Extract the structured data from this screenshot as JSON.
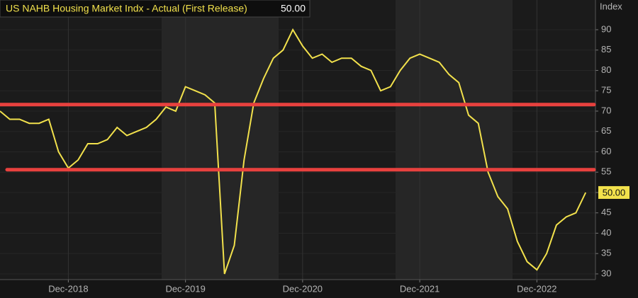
{
  "chart_data": {
    "type": "line",
    "title": "US NAHB Housing Market Indx - Actual (First Release)",
    "last_value_label": "50.00",
    "y_axis_label": "Index",
    "categories": [
      null,
      null,
      null,
      null,
      null,
      null,
      null,
      "Dec-2018",
      null,
      null,
      null,
      null,
      null,
      null,
      null,
      null,
      null,
      null,
      null,
      "Dec-2019",
      null,
      null,
      null,
      null,
      null,
      null,
      null,
      null,
      null,
      null,
      null,
      "Dec-2020",
      null,
      null,
      null,
      null,
      null,
      null,
      null,
      null,
      null,
      null,
      null,
      "Dec-2021",
      null,
      null,
      null,
      null,
      null,
      null,
      null,
      null,
      null,
      null,
      null,
      "Dec-2022",
      null,
      null,
      null,
      null,
      null
    ],
    "series": [
      {
        "color": "#f2e14c",
        "values": [
          70,
          68,
          68,
          67,
          67,
          68,
          60,
          56,
          58,
          62,
          62,
          63,
          66,
          64,
          65,
          66,
          68,
          71,
          70,
          76,
          75,
          74,
          72,
          30,
          37,
          58,
          72,
          78,
          83,
          85,
          90,
          86,
          83,
          84,
          82,
          83,
          83,
          81,
          80,
          75,
          76,
          80,
          83,
          84,
          83,
          82,
          79,
          77,
          69,
          67,
          55,
          49,
          46,
          38,
          33,
          31,
          35,
          42,
          44,
          45,
          50
        ]
      }
    ],
    "reference_lines": [
      {
        "value": 71.6,
        "color": "#e8413e"
      },
      {
        "value": 55.6,
        "color": "#e8413e"
      }
    ],
    "ylim": [
      28.6,
      97.3
    ],
    "yticks": [
      30,
      35,
      40,
      45,
      50,
      55,
      60,
      65,
      70,
      75,
      80,
      85,
      90
    ]
  }
}
